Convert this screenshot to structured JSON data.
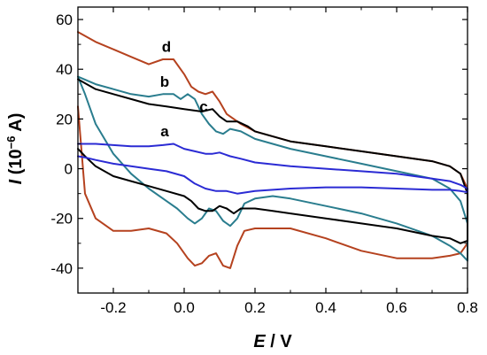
{
  "chart_data": {
    "type": "line",
    "title": "",
    "xlabel": {
      "var": "E",
      "rest": " / V"
    },
    "ylabel": {
      "var": "I",
      "rest": " (10",
      "exp": "−6",
      "unit": " A)"
    },
    "xlim": [
      -0.3,
      0.8
    ],
    "ylim": [
      -50,
      65
    ],
    "xticks": [
      -0.2,
      0.0,
      0.2,
      0.4,
      0.6,
      0.8
    ],
    "yticks": [
      -40,
      -20,
      0,
      20,
      40,
      60
    ],
    "xtick_labels": [
      "-0.2",
      "0.0",
      "0.2",
      "0.4",
      "0.6",
      "0.8"
    ],
    "ytick_labels": [
      "-40",
      "-20",
      "0",
      "20",
      "40",
      "60"
    ],
    "grid": false,
    "legend": "none",
    "annotations": [
      {
        "text": "d",
        "x": -0.05,
        "y": 47
      },
      {
        "text": "b",
        "x": -0.055,
        "y": 33
      },
      {
        "text": "c",
        "x": 0.055,
        "y": 23
      },
      {
        "text": "a",
        "x": -0.055,
        "y": 13
      }
    ],
    "series": [
      {
        "color": "#b5421f",
        "x": [
          -0.3,
          -0.25,
          -0.2,
          -0.15,
          -0.1,
          -0.06,
          -0.03,
          0.0,
          0.02,
          0.04,
          0.06,
          0.08,
          0.1,
          0.12,
          0.16,
          0.2,
          0.3,
          0.4,
          0.5,
          0.6,
          0.7,
          0.75,
          0.78,
          0.8,
          0.8,
          0.78,
          0.75,
          0.7,
          0.6,
          0.5,
          0.4,
          0.3,
          0.2,
          0.17,
          0.15,
          0.13,
          0.11,
          0.09,
          0.07,
          0.05,
          0.03,
          0.01,
          -0.02,
          -0.05,
          -0.1,
          -0.15,
          -0.2,
          -0.25,
          -0.28,
          -0.3
        ],
        "y": [
          55,
          51,
          48,
          45,
          42,
          44,
          44,
          38,
          33,
          31,
          30,
          31,
          27,
          22,
          18,
          15,
          11,
          9,
          7,
          5,
          3,
          1,
          -2,
          -8,
          -30,
          -34,
          -35,
          -36,
          -36,
          -33,
          -28,
          -24,
          -24,
          -25,
          -31,
          -40,
          -39,
          -34,
          -35,
          -38,
          -39,
          -36,
          -30,
          -26,
          -24,
          -25,
          -25,
          -20,
          -10,
          25
        ]
      },
      {
        "color": "#2a7d8e",
        "x": [
          -0.3,
          -0.25,
          -0.2,
          -0.15,
          -0.1,
          -0.06,
          -0.03,
          -0.01,
          0.01,
          0.03,
          0.05,
          0.07,
          0.09,
          0.11,
          0.13,
          0.16,
          0.2,
          0.3,
          0.4,
          0.5,
          0.6,
          0.7,
          0.75,
          0.78,
          0.8,
          0.8,
          0.78,
          0.75,
          0.7,
          0.6,
          0.5,
          0.4,
          0.3,
          0.25,
          0.2,
          0.17,
          0.15,
          0.13,
          0.11,
          0.09,
          0.07,
          0.05,
          0.03,
          0.01,
          -0.02,
          -0.05,
          -0.1,
          -0.15,
          -0.2,
          -0.25,
          -0.28,
          -0.3
        ],
        "y": [
          37,
          34,
          32,
          30,
          29,
          30,
          30,
          28,
          30,
          28,
          22,
          18,
          15,
          14,
          16,
          15,
          12,
          8,
          5,
          2,
          -1,
          -4,
          -8,
          -13,
          -22,
          -37,
          -34,
          -31,
          -27,
          -22,
          -18,
          -15,
          -12,
          -11,
          -12,
          -14,
          -20,
          -23,
          -21,
          -17,
          -16,
          -20,
          -22,
          -20,
          -16,
          -13,
          -8,
          -2,
          6,
          18,
          30,
          37
        ]
      },
      {
        "color": "#000000",
        "x": [
          -0.3,
          -0.25,
          -0.2,
          -0.15,
          -0.1,
          -0.05,
          0.0,
          0.05,
          0.08,
          0.1,
          0.12,
          0.15,
          0.18,
          0.2,
          0.3,
          0.4,
          0.5,
          0.6,
          0.7,
          0.75,
          0.78,
          0.8,
          0.8,
          0.78,
          0.75,
          0.7,
          0.6,
          0.5,
          0.4,
          0.3,
          0.25,
          0.2,
          0.18,
          0.16,
          0.14,
          0.12,
          0.1,
          0.08,
          0.06,
          0.04,
          0.02,
          0.0,
          -0.05,
          -0.1,
          -0.15,
          -0.2,
          -0.25,
          -0.28,
          -0.3
        ],
        "y": [
          36,
          32,
          30,
          28,
          26,
          25,
          24,
          23,
          24,
          21,
          19,
          19,
          17,
          15,
          11,
          9,
          7,
          5,
          3,
          1,
          -2,
          -10,
          -29,
          -30,
          -28,
          -27,
          -24,
          -22,
          -20,
          -18,
          -17,
          -16,
          -16,
          -16,
          -18,
          -16,
          -15,
          -17,
          -17,
          -16,
          -13,
          -11,
          -9,
          -7,
          -5,
          -3,
          1,
          5,
          8
        ]
      },
      {
        "color": "#2b2bd4",
        "x": [
          -0.3,
          -0.25,
          -0.2,
          -0.15,
          -0.1,
          -0.06,
          -0.03,
          0.0,
          0.03,
          0.06,
          0.08,
          0.1,
          0.13,
          0.16,
          0.2,
          0.3,
          0.4,
          0.5,
          0.6,
          0.7,
          0.75,
          0.78,
          0.8,
          0.8,
          0.78,
          0.75,
          0.7,
          0.6,
          0.5,
          0.4,
          0.3,
          0.2,
          0.15,
          0.12,
          0.09,
          0.06,
          0.03,
          0.0,
          -0.05,
          -0.1,
          -0.15,
          -0.2,
          -0.25,
          -0.28,
          -0.3
        ],
        "y": [
          10,
          10,
          9.5,
          9,
          9,
          9.5,
          10,
          8,
          7,
          6,
          6,
          6.5,
          5,
          4,
          2.5,
          1,
          0,
          -1,
          -2,
          -4,
          -5,
          -6.5,
          -8,
          -9.5,
          -9,
          -8.5,
          -8.5,
          -8,
          -7.5,
          -7.5,
          -8,
          -9,
          -10,
          -9,
          -9,
          -8,
          -6,
          -3,
          -1,
          0,
          1,
          2,
          3.5,
          4.5,
          5
        ]
      }
    ]
  }
}
